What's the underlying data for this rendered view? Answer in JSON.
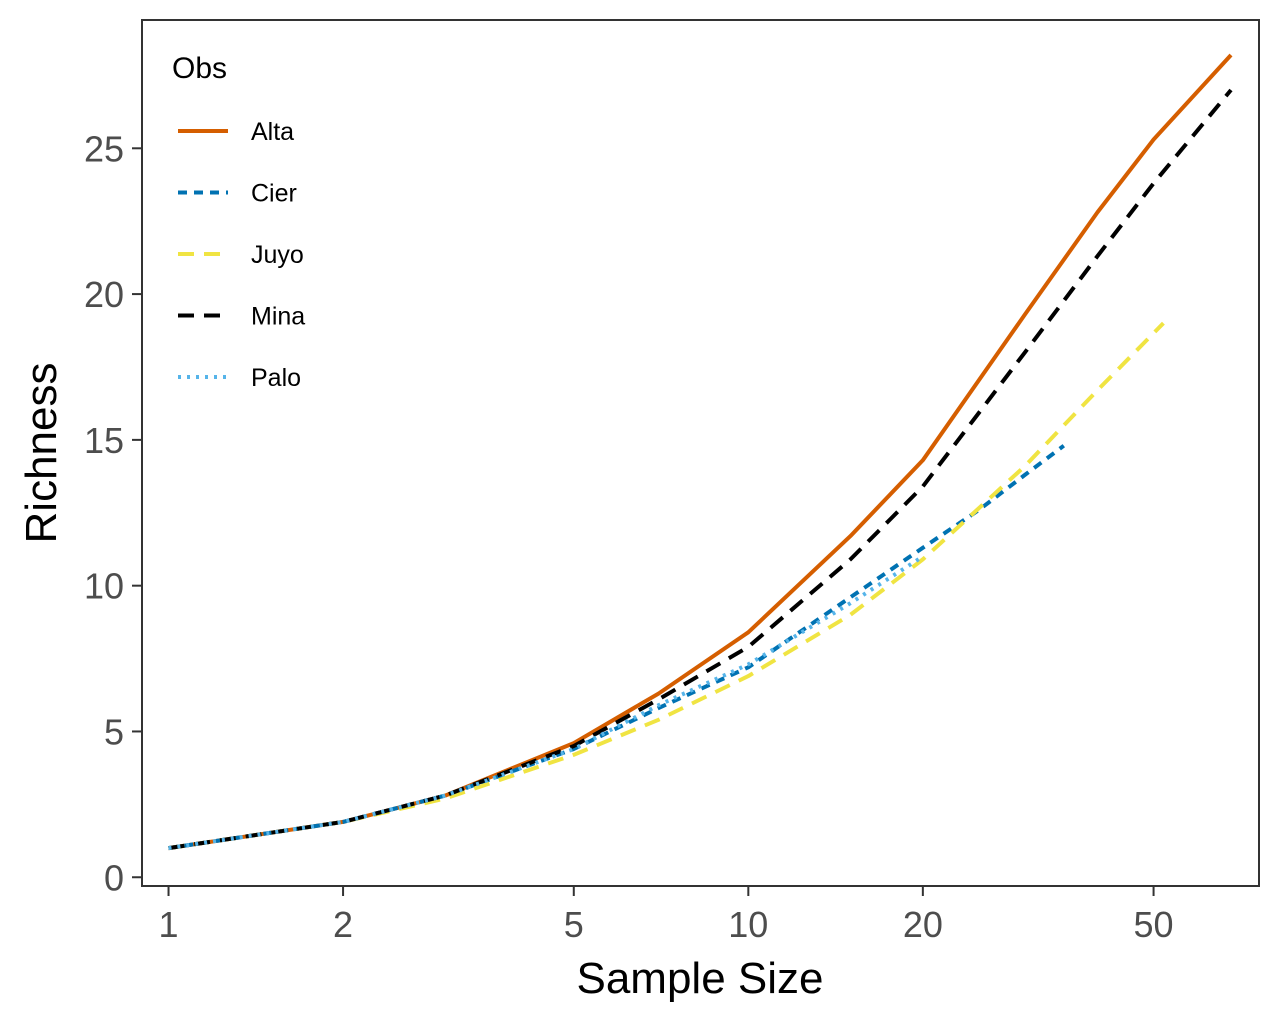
{
  "chart_data": {
    "type": "line",
    "xlabel": "Sample Size",
    "ylabel": "Richness",
    "x_scale": "log",
    "xlim": [
      0.9,
      76
    ],
    "ylim": [
      -0.3,
      29.4
    ],
    "x_ticks": [
      1,
      2,
      5,
      10,
      20,
      50
    ],
    "x_tick_labels": [
      "1",
      "2",
      "5",
      "10",
      "20",
      "50"
    ],
    "y_ticks": [
      0,
      5,
      10,
      15,
      20,
      25
    ],
    "y_tick_labels": [
      "0",
      "5",
      "10",
      "15",
      "20",
      "25"
    ],
    "grid": false,
    "legend": {
      "title": "Obs",
      "position": "top-left"
    },
    "series": [
      {
        "name": "Alta",
        "color": "#D55E00",
        "dash": "solid",
        "x": [
          1,
          2,
          3,
          5,
          7,
          10,
          15,
          20,
          30,
          40,
          50,
          68
        ],
        "y": [
          1,
          1.9,
          2.8,
          4.6,
          6.3,
          8.4,
          11.7,
          14.3,
          19.3,
          22.8,
          25.3,
          28.2
        ]
      },
      {
        "name": "Cier",
        "color": "#0072B2",
        "dash": "short",
        "x": [
          1,
          2,
          3,
          5,
          7,
          10,
          15,
          20,
          25,
          30,
          35
        ],
        "y": [
          1,
          1.9,
          2.8,
          4.4,
          5.8,
          7.2,
          9.6,
          11.3,
          12.6,
          13.8,
          14.8
        ]
      },
      {
        "name": "Juyo",
        "color": "#F0E442",
        "dash": "long",
        "x": [
          1,
          2,
          3,
          5,
          7,
          10,
          15,
          20,
          30,
          40,
          52
        ],
        "y": [
          1,
          1.9,
          2.7,
          4.2,
          5.4,
          6.9,
          9.0,
          10.9,
          14.1,
          16.7,
          19.0
        ]
      },
      {
        "name": "Mina",
        "color": "#000000",
        "dash": "long",
        "x": [
          1,
          2,
          3,
          5,
          7,
          10,
          15,
          20,
          30,
          40,
          50,
          68
        ],
        "y": [
          1,
          1.9,
          2.8,
          4.5,
          6.1,
          7.9,
          10.9,
          13.4,
          18.0,
          21.3,
          23.8,
          27.0
        ]
      },
      {
        "name": "Palo",
        "color": "#56B4E9",
        "dash": "dotted",
        "x": [
          1,
          2,
          3,
          5,
          7,
          10,
          15,
          20
        ],
        "y": [
          1,
          1.9,
          2.8,
          4.4,
          5.9,
          7.3,
          9.4,
          11.0
        ]
      }
    ]
  }
}
